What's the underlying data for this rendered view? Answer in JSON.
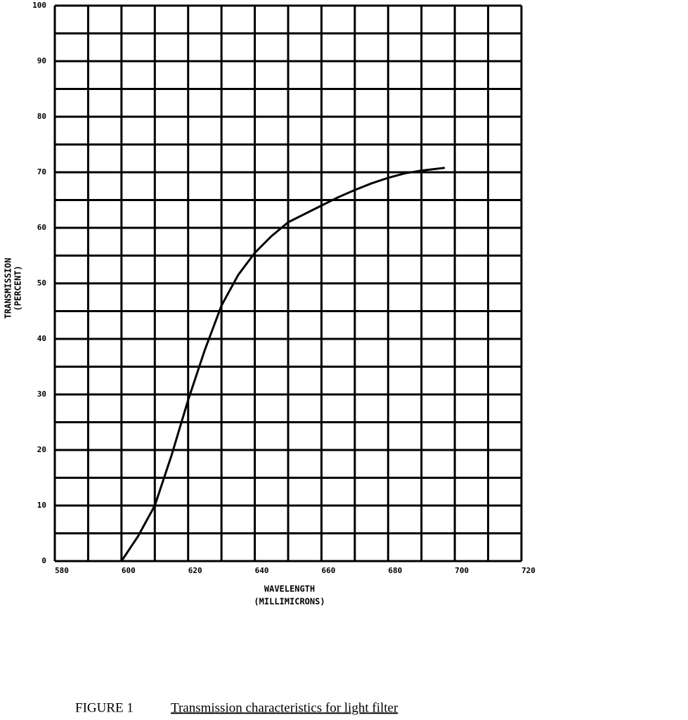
{
  "chart_data": {
    "type": "line",
    "caption_number": "FIGURE 1",
    "caption_title": "Transmission characteristics for light filter",
    "ylabel": [
      "TRANSMISSION",
      "(PERCENT)"
    ],
    "xlabel": [
      "WAVELENGTH",
      "(MILLIMICRONS)"
    ],
    "x": [
      600,
      605,
      610,
      615,
      620,
      625,
      630,
      635,
      640,
      645,
      650,
      655,
      660,
      665,
      670,
      675,
      680,
      685,
      690,
      697
    ],
    "series": [
      {
        "name": "Transmission",
        "color": "#000000",
        "values": [
          0,
          4.5,
          10,
          19,
          29,
          38,
          46,
          51.5,
          55.5,
          58.5,
          61,
          62.5,
          64,
          65.5,
          66.8,
          68,
          69,
          69.8,
          70.3,
          70.8
        ]
      }
    ],
    "xlim": [
      580,
      720
    ],
    "xticks": [
      580,
      600,
      620,
      640,
      660,
      680,
      700,
      720
    ],
    "ylim": [
      0,
      100
    ],
    "yticks": [
      0,
      10,
      20,
      30,
      40,
      50,
      60,
      70,
      80,
      90,
      100
    ],
    "minor_xticks": [
      590,
      610,
      630,
      650,
      670,
      690,
      710
    ],
    "minor_yticks": [
      5,
      15,
      25,
      35,
      45,
      55,
      65,
      75,
      85,
      95
    ],
    "grid": true
  }
}
